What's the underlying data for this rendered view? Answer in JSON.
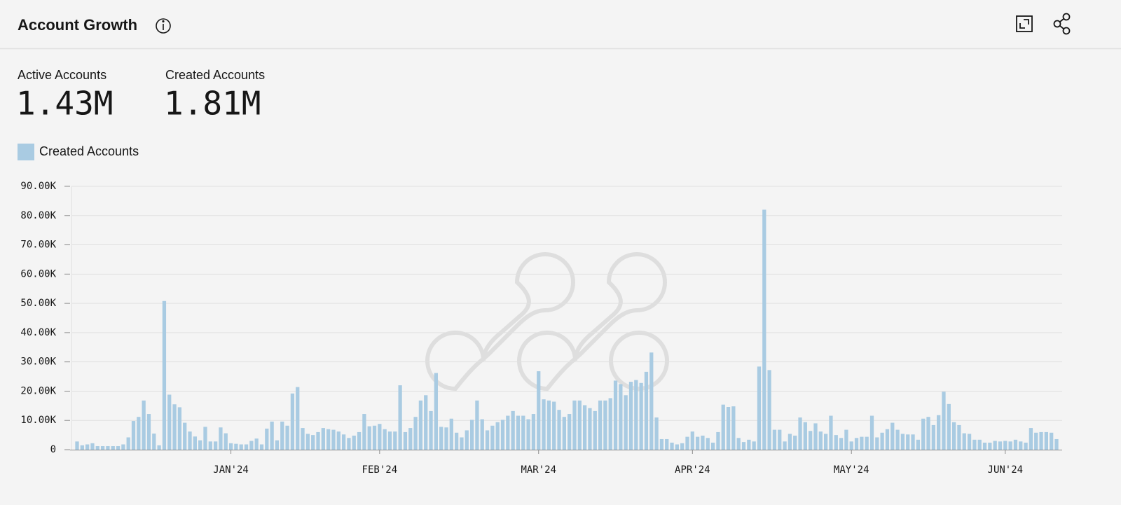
{
  "header": {
    "title": "Account Growth"
  },
  "stats": [
    {
      "label": "Active Accounts",
      "value": "1.43M"
    },
    {
      "label": "Created Accounts",
      "value": "1.81M"
    }
  ],
  "chart_data": {
    "type": "bar",
    "categories": [
      null,
      null,
      null,
      null,
      null,
      null,
      null,
      null,
      null,
      null,
      null,
      null,
      null,
      null,
      null,
      null,
      null,
      null,
      null,
      null,
      null,
      null,
      null,
      null,
      null,
      null,
      null,
      null,
      null,
      null,
      "JAN'24",
      null,
      null,
      null,
      null,
      null,
      null,
      null,
      null,
      null,
      null,
      null,
      null,
      null,
      null,
      null,
      null,
      null,
      null,
      null,
      null,
      null,
      null,
      null,
      null,
      null,
      null,
      null,
      null,
      "FEB'24",
      null,
      null,
      null,
      null,
      null,
      null,
      null,
      null,
      null,
      null,
      null,
      null,
      null,
      null,
      null,
      null,
      null,
      null,
      null,
      null,
      null,
      null,
      null,
      null,
      null,
      null,
      null,
      null,
      null,
      null,
      "MAR'24",
      null,
      null,
      null,
      null,
      null,
      null,
      null,
      null,
      null,
      null,
      null,
      null,
      null,
      null,
      null,
      null,
      null,
      null,
      null,
      null,
      null,
      null,
      null,
      null,
      null,
      null,
      null,
      null,
      null,
      "APR'24",
      null,
      null,
      null,
      null,
      null,
      null,
      null,
      null,
      null,
      null,
      null,
      null,
      null,
      null,
      null,
      null,
      null,
      null,
      null,
      null,
      null,
      null,
      null,
      null,
      null,
      null,
      null,
      null,
      null,
      null,
      "MAY'24",
      null,
      null,
      null,
      null,
      null,
      null,
      null,
      null,
      null,
      null,
      null,
      null,
      null,
      null,
      null,
      null,
      null,
      null,
      null,
      null,
      null,
      null,
      null,
      null,
      null,
      null,
      null,
      null,
      null,
      "JUN'24",
      null,
      null,
      null,
      null,
      null,
      null,
      null,
      null,
      null,
      null
    ],
    "series": [
      {
        "name": "Created Accounts",
        "color": "#a9cbe2",
        "values": [
          2800,
          1500,
          1800,
          2200,
          1200,
          1200,
          1200,
          1200,
          1200,
          1800,
          4200,
          9800,
          11200,
          16800,
          12200,
          5500,
          1500,
          50800,
          18800,
          15500,
          14500,
          9200,
          6200,
          4500,
          3200,
          7800,
          2800,
          2800,
          7600,
          5600,
          2200,
          2000,
          1800,
          1800,
          3000,
          3800,
          1800,
          7200,
          9600,
          3200,
          9600,
          8200,
          19200,
          21400,
          7400,
          5400,
          5000,
          6000,
          7400,
          7000,
          6800,
          6200,
          5200,
          4000,
          4800,
          6000,
          12200,
          8000,
          8200,
          8800,
          7000,
          6200,
          6200,
          22000,
          6000,
          7400,
          11200,
          16800,
          18600,
          13200,
          26200,
          7800,
          7600,
          10600,
          5800,
          4200,
          6600,
          10200,
          16800,
          10400,
          6600,
          8200,
          9400,
          10200,
          11600,
          13200,
          11600,
          11600,
          10400,
          12200,
          26800,
          17200,
          16800,
          16400,
          13600,
          11200,
          12200,
          16800,
          16800,
          15200,
          14200,
          13200,
          16800,
          16800,
          17600,
          23600,
          22400,
          18600,
          23200,
          23800,
          22800,
          26600,
          33200,
          11000,
          3600,
          3600,
          2400,
          1800,
          2200,
          4400,
          6200,
          4400,
          4800,
          4000,
          2400,
          6000,
          15400,
          14600,
          14800,
          4000,
          2600,
          3400,
          2800,
          28400,
          82000,
          27200,
          6800,
          6800,
          2800,
          5400,
          4800,
          11000,
          9400,
          6400,
          9000,
          6200,
          5400,
          11600,
          5000,
          4000,
          6800,
          2800,
          4000,
          4400,
          4400,
          11600,
          4200,
          5800,
          7000,
          9200,
          6800,
          5400,
          5200,
          5200,
          3400,
          10600,
          11200,
          8400,
          11800,
          19800,
          15600,
          9400,
          8400,
          5600,
          5400,
          3400,
          3400,
          2400,
          2400,
          3000,
          2800,
          3000,
          2800,
          3400,
          2800,
          2400,
          7400,
          5800,
          6000,
          6000,
          5800,
          3600
        ]
      }
    ],
    "ylim": [
      0,
      90000
    ],
    "yticks": [
      0,
      {
        "value": 10000,
        "label": "10.00K"
      },
      {
        "value": 20000,
        "label": "20.00K"
      },
      {
        "value": 30000,
        "label": "30.00K"
      },
      {
        "value": 40000,
        "label": "40.00K"
      },
      {
        "value": 50000,
        "label": "50.00K"
      },
      {
        "value": 60000,
        "label": "60.00K"
      },
      {
        "value": 70000,
        "label": "70.00K"
      },
      {
        "value": 80000,
        "label": "80.00K"
      },
      {
        "value": 90000,
        "label": "90.00K"
      }
    ],
    "grid": true,
    "legend": "top-left"
  }
}
